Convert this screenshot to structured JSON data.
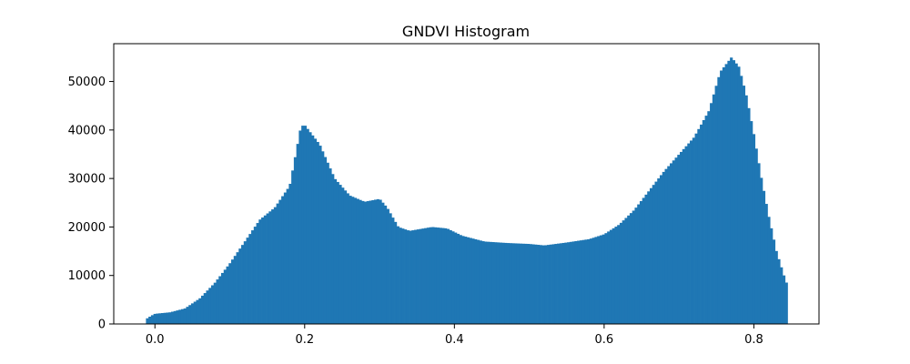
{
  "chart_data": {
    "type": "bar",
    "title": "GNDVI Histogram",
    "xlabel": "",
    "ylabel": "",
    "xlim": [
      -0.055,
      0.887
    ],
    "ylim": [
      0,
      57800
    ],
    "x_ticks": [
      0.0,
      0.2,
      0.4,
      0.6,
      0.8
    ],
    "x_tick_labels": [
      "0.0",
      "0.2",
      "0.4",
      "0.6",
      "0.8"
    ],
    "y_ticks": [
      0,
      10000,
      20000,
      30000,
      40000,
      50000
    ],
    "y_tick_labels": [
      "0",
      "10000",
      "20000",
      "30000",
      "40000",
      "50000"
    ],
    "bar_color": "#1f77b4",
    "x_range": [
      -0.012,
      0.845
    ],
    "profile": [
      [
        -0.012,
        1000
      ],
      [
        -0.005,
        1700
      ],
      [
        0.0,
        2100
      ],
      [
        0.02,
        2400
      ],
      [
        0.04,
        3200
      ],
      [
        0.06,
        5300
      ],
      [
        0.08,
        8500
      ],
      [
        0.1,
        12500
      ],
      [
        0.12,
        17000
      ],
      [
        0.14,
        21500
      ],
      [
        0.16,
        24000
      ],
      [
        0.18,
        28500
      ],
      [
        0.195,
        40800
      ],
      [
        0.2,
        41000
      ],
      [
        0.21,
        39000
      ],
      [
        0.22,
        37000
      ],
      [
        0.24,
        30000
      ],
      [
        0.26,
        26500
      ],
      [
        0.28,
        25200
      ],
      [
        0.3,
        25800
      ],
      [
        0.31,
        24000
      ],
      [
        0.325,
        20000
      ],
      [
        0.34,
        19200
      ],
      [
        0.37,
        20000
      ],
      [
        0.39,
        19700
      ],
      [
        0.41,
        18200
      ],
      [
        0.44,
        17000
      ],
      [
        0.47,
        16700
      ],
      [
        0.5,
        16500
      ],
      [
        0.52,
        16200
      ],
      [
        0.55,
        16800
      ],
      [
        0.58,
        17500
      ],
      [
        0.6,
        18500
      ],
      [
        0.62,
        20500
      ],
      [
        0.64,
        23500
      ],
      [
        0.66,
        27500
      ],
      [
        0.68,
        31500
      ],
      [
        0.7,
        35000
      ],
      [
        0.72,
        38500
      ],
      [
        0.74,
        44000
      ],
      [
        0.755,
        52000
      ],
      [
        0.77,
        55000
      ],
      [
        0.78,
        53000
      ],
      [
        0.79,
        47000
      ],
      [
        0.8,
        39000
      ],
      [
        0.81,
        30000
      ],
      [
        0.82,
        22000
      ],
      [
        0.83,
        15000
      ],
      [
        0.84,
        10000
      ],
      [
        0.845,
        7800
      ]
    ]
  }
}
